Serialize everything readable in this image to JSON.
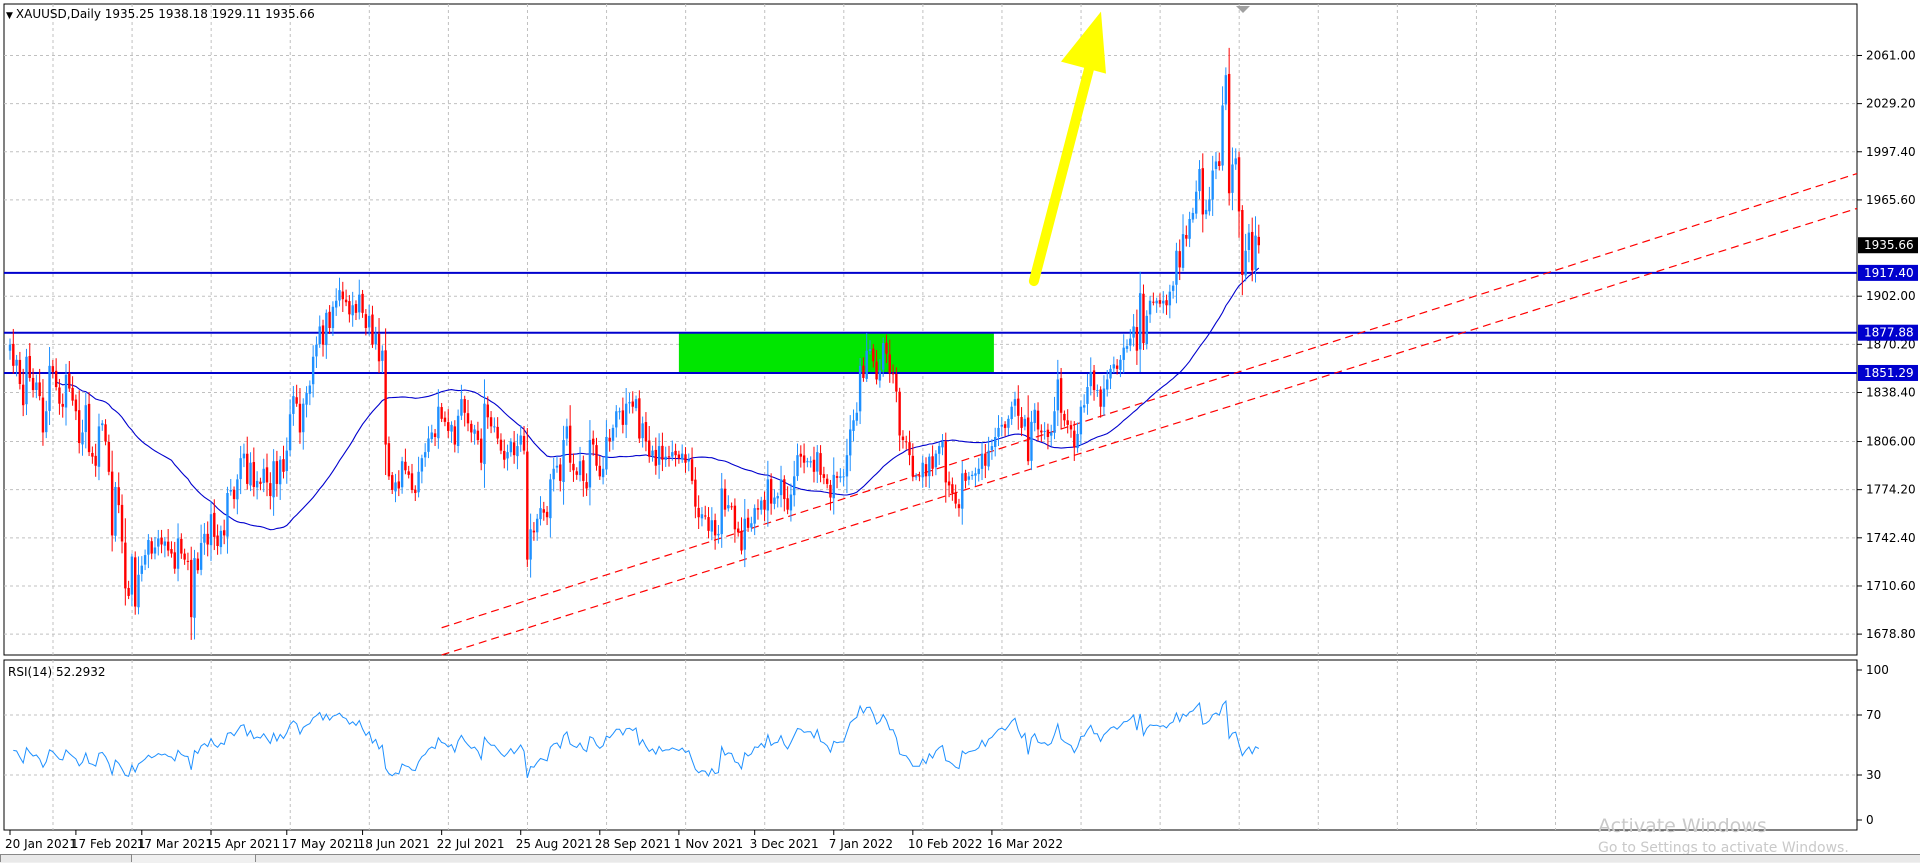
{
  "header": {
    "symbol_line": "XAUUSD,Daily  1935.25 1938.18 1929.11 1935.66"
  },
  "rsi_header": {
    "label": "RSI(14) 52.2932"
  },
  "watermark": {
    "line1": "Activate Windows",
    "line2": "Go to Settings to activate Windows."
  },
  "colors": {
    "bull": "#1e90ff",
    "bear": "#ff0000",
    "ma": "#0000cd",
    "level_line": "#0000cd",
    "zone": "#00e600",
    "trend": "#ff0000",
    "arrow": "#ffff00",
    "rsi": "#1e90ff",
    "grid": "#c0c0c0"
  },
  "chart_data": [
    {
      "type": "candlestick",
      "title": "XAUUSD,Daily",
      "last": {
        "open": 1935.25,
        "high": 1938.18,
        "low": 1929.11,
        "close": 1935.66
      },
      "ylim": [
        1665,
        2095
      ],
      "y_ticks": [
        "2061.00",
        "2029.20",
        "1997.40",
        "1965.60",
        "1902.00",
        "1870.20",
        "1838.40",
        "1806.00",
        "1774.20",
        "1742.40",
        "1710.60",
        "1678.80"
      ],
      "x_ticks": [
        "20 Jan 2021",
        "17 Feb 2021",
        "17 Mar 2021",
        "15 Apr 2021",
        "17 May 2021",
        "18 Jun 2021",
        "22 Jul 2021",
        "25 Aug 2021",
        "28 Sep 2021",
        "1 Nov 2021",
        "3 Dec 2021",
        "7 Jan 2022",
        "10 Feb 2022",
        "16 Mar 2022"
      ],
      "price_labels": {
        "current": "1935.66",
        "levels": [
          "1917.40",
          "1877.88",
          "1851.29"
        ]
      },
      "horizontal_levels": [
        1917.4,
        1877.88,
        1851.29
      ],
      "zone": {
        "from_date": "1 Nov 2021",
        "to_date": "16 Mar 2022",
        "low": 1851.29,
        "high": 1877.88
      },
      "trend_lines": [
        {
          "from": [
            "22 Jul 2021",
            1683
          ],
          "to": [
            "end",
            1983
          ]
        },
        {
          "from": [
            "22 Jul 2021",
            1665
          ],
          "to": [
            "end",
            1960
          ]
        }
      ],
      "projection_arrow": {
        "from": [
          "16 Mar 2022",
          1912
        ],
        "to": [
          "mid Apr 2022",
          2090
        ]
      },
      "closes": [
        1870,
        1856,
        1860,
        1844,
        1830,
        1862,
        1848,
        1840,
        1845,
        1836,
        1812,
        1826,
        1856,
        1852,
        1842,
        1831,
        1829,
        1850,
        1841,
        1833,
        1826,
        1805,
        1812,
        1830,
        1799,
        1796,
        1790,
        1816,
        1818,
        1806,
        1786,
        1744,
        1776,
        1764,
        1740,
        1709,
        1704,
        1730,
        1697,
        1718,
        1724,
        1731,
        1741,
        1732,
        1736,
        1742,
        1738,
        1740,
        1734,
        1732,
        1722,
        1742,
        1732,
        1728,
        1727,
        1690,
        1729,
        1721,
        1739,
        1745,
        1738,
        1758,
        1743,
        1737,
        1747,
        1744,
        1772,
        1774,
        1768,
        1781,
        1795,
        1798,
        1778,
        1792,
        1776,
        1780,
        1778,
        1788,
        1779,
        1770,
        1793,
        1778,
        1794,
        1786,
        1800,
        1824,
        1836,
        1831,
        1812,
        1831,
        1838,
        1843,
        1862,
        1870,
        1882,
        1870,
        1891,
        1881,
        1895,
        1899,
        1906,
        1900,
        1898,
        1890,
        1896,
        1891,
        1903,
        1891,
        1881,
        1889,
        1870,
        1877,
        1859,
        1866,
        1804,
        1783,
        1774,
        1779,
        1775,
        1793,
        1787,
        1784,
        1774,
        1772,
        1786,
        1795,
        1799,
        1808,
        1812,
        1809,
        1829,
        1821,
        1819,
        1813,
        1817,
        1804,
        1823,
        1834,
        1825,
        1818,
        1812,
        1814,
        1807,
        1792,
        1831,
        1822,
        1816,
        1816,
        1808,
        1800,
        1794,
        1799,
        1806,
        1797,
        1803,
        1810,
        1800,
        1728,
        1748,
        1746,
        1755,
        1762,
        1759,
        1756,
        1781,
        1788,
        1790,
        1780,
        1807,
        1816,
        1792,
        1787,
        1784,
        1793,
        1780,
        1775,
        1807,
        1804,
        1790,
        1783,
        1788,
        1809,
        1806,
        1815,
        1826,
        1826,
        1817,
        1831,
        1832,
        1829,
        1834,
        1808,
        1818,
        1806,
        1796,
        1800,
        1790,
        1803,
        1794,
        1796,
        1796,
        1799,
        1797,
        1795,
        1798,
        1792,
        1794,
        1780,
        1763,
        1756,
        1758,
        1757,
        1747,
        1754,
        1744,
        1745,
        1775,
        1761,
        1764,
        1763,
        1748,
        1746,
        1734,
        1755,
        1749,
        1752,
        1762,
        1761,
        1767,
        1761,
        1781,
        1765,
        1769,
        1770,
        1781,
        1768,
        1761,
        1771,
        1783,
        1797,
        1796,
        1792,
        1793,
        1793,
        1786,
        1799,
        1784,
        1782,
        1778,
        1769,
        1784,
        1782,
        1783,
        1783,
        1797,
        1814,
        1820,
        1825,
        1856,
        1848,
        1866,
        1867,
        1859,
        1847,
        1853,
        1871,
        1864,
        1851,
        1851,
        1839,
        1810,
        1807,
        1806,
        1797,
        1783,
        1783,
        1783,
        1792,
        1783,
        1796,
        1788,
        1798,
        1803,
        1806,
        1779,
        1777,
        1772,
        1765,
        1762,
        1785,
        1780,
        1783,
        1784,
        1785,
        1788,
        1798,
        1790,
        1800,
        1803,
        1809,
        1815,
        1817,
        1815,
        1821,
        1829,
        1834,
        1823,
        1815,
        1821,
        1793,
        1819,
        1827,
        1814,
        1812,
        1813,
        1809,
        1812,
        1826,
        1847,
        1825,
        1820,
        1817,
        1814,
        1802,
        1811,
        1829,
        1830,
        1842,
        1852,
        1840,
        1840,
        1829,
        1841,
        1847,
        1854,
        1857,
        1854,
        1860,
        1868,
        1869,
        1874,
        1882,
        1866,
        1904,
        1871,
        1889,
        1899,
        1898,
        1899,
        1897,
        1899,
        1896,
        1905,
        1909,
        1932,
        1921,
        1943,
        1940,
        1953,
        1957,
        1971,
        1986,
        1956,
        1959,
        1966,
        1985,
        1991,
        1988,
        2028,
        2048,
        1970,
        1989,
        1993,
        1958,
        1916,
        1932,
        1944,
        1919,
        1942,
        1935.66
      ]
    },
    {
      "type": "line",
      "title": "RSI(14) 52.2932",
      "ylim": [
        0,
        100
      ],
      "y_ticks": [
        "100",
        "70",
        "30",
        "0"
      ],
      "last_value": 52.2932
    }
  ]
}
